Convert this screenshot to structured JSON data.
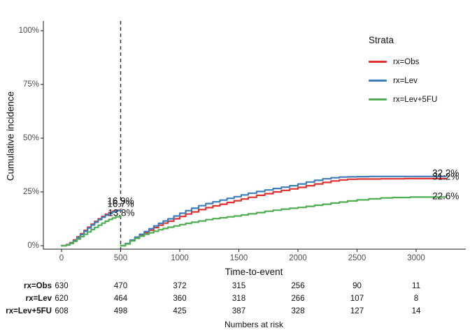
{
  "chart_data": {
    "type": "line",
    "title": "",
    "xlabel": "Time-to-event",
    "ylabel": "Cumulative incidence",
    "x_ticks": [
      0,
      500,
      1000,
      1500,
      2000,
      2500,
      3000
    ],
    "y_ticks": [
      {
        "value": 0,
        "label": "0%"
      },
      {
        "value": 25,
        "label": "25%"
      },
      {
        "value": 50,
        "label": "50%"
      },
      {
        "value": 75,
        "label": "75%"
      },
      {
        "value": 100,
        "label": "100%"
      }
    ],
    "xlim": [
      -155,
      3420
    ],
    "ylim": [
      0,
      104.5
    ],
    "grid": false,
    "landmark_line_x": 500,
    "legend": {
      "title": "Strata",
      "position": "top-right",
      "items": [
        {
          "label": "rx=Obs",
          "color": "#E0312E"
        },
        {
          "label": "rx=Lev",
          "color": "#3D7DBC"
        },
        {
          "label": "rx=Lev+5FU",
          "color": "#4FAE51"
        }
      ]
    },
    "series": [
      {
        "name": "rx=Obs",
        "color": "#E0312E",
        "segments": [
          [
            [
              0,
              0
            ],
            [
              40,
              0.5
            ],
            [
              70,
              1.4
            ],
            [
              100,
              2.7
            ],
            [
              130,
              4.1
            ],
            [
              160,
              5.6
            ],
            [
              190,
              7.1
            ],
            [
              220,
              8.6
            ],
            [
              250,
              10.0
            ],
            [
              280,
              11.3
            ],
            [
              310,
              12.5
            ],
            [
              340,
              13.6
            ],
            [
              370,
              14.6
            ],
            [
              400,
              15.4
            ],
            [
              430,
              16.0
            ],
            [
              460,
              16.5
            ],
            [
              500,
              16.9
            ]
          ],
          [
            [
              500,
              0
            ],
            [
              540,
              0.9
            ],
            [
              580,
              2.4
            ],
            [
              620,
              3.7
            ],
            [
              660,
              4.9
            ],
            [
              700,
              6.0
            ],
            [
              740,
              7.2
            ],
            [
              780,
              8.4
            ],
            [
              820,
              9.5
            ],
            [
              860,
              10.5
            ],
            [
              900,
              11.4
            ],
            [
              950,
              12.5
            ],
            [
              1000,
              13.6
            ],
            [
              1050,
              14.7
            ],
            [
              1100,
              15.7
            ],
            [
              1160,
              16.8
            ],
            [
              1220,
              17.7
            ],
            [
              1280,
              18.5
            ],
            [
              1340,
              19.3
            ],
            [
              1400,
              20.1
            ],
            [
              1460,
              20.9
            ],
            [
              1520,
              21.7
            ],
            [
              1580,
              22.5
            ],
            [
              1650,
              23.4
            ],
            [
              1720,
              24.2
            ],
            [
              1790,
              25.0
            ],
            [
              1860,
              25.7
            ],
            [
              1930,
              26.4
            ],
            [
              2000,
              27.1
            ],
            [
              2070,
              27.9
            ],
            [
              2140,
              28.7
            ],
            [
              2210,
              29.4
            ],
            [
              2280,
              30.1
            ],
            [
              2350,
              30.6
            ],
            [
              2420,
              30.9
            ],
            [
              2500,
              31.0
            ],
            [
              2700,
              31.1
            ],
            [
              2900,
              31.2
            ],
            [
              3250,
              31.2
            ]
          ]
        ]
      },
      {
        "name": "rx=Lev",
        "color": "#3D7DBC",
        "segments": [
          [
            [
              0,
              0
            ],
            [
              40,
              0.4
            ],
            [
              70,
              1.2
            ],
            [
              100,
              2.4
            ],
            [
              130,
              3.7
            ],
            [
              160,
              5.2
            ],
            [
              190,
              6.7
            ],
            [
              220,
              8.2
            ],
            [
              250,
              9.6
            ],
            [
              280,
              10.9
            ],
            [
              310,
              12.1
            ],
            [
              340,
              13.2
            ],
            [
              370,
              14.2
            ],
            [
              400,
              15.0
            ],
            [
              430,
              15.7
            ],
            [
              460,
              16.3
            ],
            [
              500,
              16.7
            ]
          ],
          [
            [
              500,
              0
            ],
            [
              540,
              1.0
            ],
            [
              580,
              2.6
            ],
            [
              620,
              4.0
            ],
            [
              660,
              5.3
            ],
            [
              700,
              6.6
            ],
            [
              740,
              7.9
            ],
            [
              780,
              9.2
            ],
            [
              820,
              10.4
            ],
            [
              860,
              11.5
            ],
            [
              900,
              12.5
            ],
            [
              950,
              13.8
            ],
            [
              1000,
              15.1
            ],
            [
              1050,
              16.3
            ],
            [
              1100,
              17.4
            ],
            [
              1160,
              18.6
            ],
            [
              1220,
              19.6
            ],
            [
              1280,
              20.4
            ],
            [
              1340,
              21.2
            ],
            [
              1400,
              22.0
            ],
            [
              1460,
              22.8
            ],
            [
              1520,
              23.6
            ],
            [
              1580,
              24.4
            ],
            [
              1650,
              25.2
            ],
            [
              1720,
              25.9
            ],
            [
              1790,
              26.6
            ],
            [
              1860,
              27.2
            ],
            [
              1930,
              27.9
            ],
            [
              2000,
              28.7
            ],
            [
              2070,
              29.6
            ],
            [
              2140,
              30.4
            ],
            [
              2210,
              31.1
            ],
            [
              2280,
              31.6
            ],
            [
              2350,
              31.9
            ],
            [
              2420,
              32.0
            ],
            [
              2500,
              32.1
            ],
            [
              2600,
              32.2
            ],
            [
              3250,
              32.2
            ]
          ]
        ]
      },
      {
        "name": "rx=Lev+5FU",
        "color": "#4FAE51",
        "segments": [
          [
            [
              0,
              0
            ],
            [
              40,
              0.3
            ],
            [
              70,
              1.0
            ],
            [
              100,
              2.0
            ],
            [
              130,
              3.1
            ],
            [
              160,
              4.2
            ],
            [
              190,
              5.3
            ],
            [
              220,
              6.4
            ],
            [
              250,
              7.5
            ],
            [
              280,
              8.5
            ],
            [
              310,
              9.5
            ],
            [
              340,
              10.5
            ],
            [
              370,
              11.4
            ],
            [
              400,
              12.2
            ],
            [
              430,
              12.9
            ],
            [
              460,
              13.4
            ],
            [
              500,
              13.8
            ]
          ],
          [
            [
              500,
              0
            ],
            [
              540,
              0.8
            ],
            [
              580,
              2.2
            ],
            [
              620,
              3.4
            ],
            [
              660,
              4.4
            ],
            [
              700,
              5.3
            ],
            [
              740,
              6.0
            ],
            [
              780,
              6.7
            ],
            [
              820,
              7.4
            ],
            [
              860,
              8.0
            ],
            [
              900,
              8.6
            ],
            [
              950,
              9.2
            ],
            [
              1000,
              9.8
            ],
            [
              1050,
              10.4
            ],
            [
              1100,
              10.9
            ],
            [
              1160,
              11.5
            ],
            [
              1220,
              12.1
            ],
            [
              1280,
              12.6
            ],
            [
              1340,
              13.0
            ],
            [
              1400,
              13.4
            ],
            [
              1460,
              13.8
            ],
            [
              1520,
              14.3
            ],
            [
              1580,
              14.8
            ],
            [
              1650,
              15.4
            ],
            [
              1720,
              16.0
            ],
            [
              1790,
              16.5
            ],
            [
              1860,
              17.0
            ],
            [
              1930,
              17.4
            ],
            [
              2000,
              17.8
            ],
            [
              2070,
              18.3
            ],
            [
              2140,
              18.8
            ],
            [
              2210,
              19.3
            ],
            [
              2280,
              19.8
            ],
            [
              2350,
              20.3
            ],
            [
              2420,
              20.8
            ],
            [
              2500,
              21.3
            ],
            [
              2600,
              21.8
            ],
            [
              2700,
              22.2
            ],
            [
              2800,
              22.4
            ],
            [
              2950,
              22.6
            ],
            [
              3250,
              22.6
            ]
          ]
        ]
      }
    ],
    "annotations": [
      {
        "text": "16.9%",
        "day": 500,
        "pct": 20.8
      },
      {
        "text": "16.7%",
        "day": 500,
        "pct": 19.5
      },
      {
        "text": "13.8%",
        "day": 505,
        "pct": 15.3
      },
      {
        "text": "32.2%",
        "day": 3250,
        "pct": 33.8
      },
      {
        "text": "31.2%",
        "day": 3250,
        "pct": 32.3
      },
      {
        "text": "22.6%",
        "day": 3250,
        "pct": 22.9
      }
    ],
    "risk_table": {
      "caption": "Numbers at risk",
      "time_points": [
        0,
        500,
        1000,
        1500,
        2000,
        2500,
        3000
      ],
      "rows": [
        {
          "label": "rx=Obs",
          "values": [
            630,
            470,
            372,
            315,
            256,
            90,
            11
          ]
        },
        {
          "label": "rx=Lev",
          "values": [
            620,
            464,
            360,
            318,
            266,
            107,
            8
          ]
        },
        {
          "label": "rx=Lev+5FU",
          "values": [
            608,
            498,
            425,
            387,
            328,
            127,
            14
          ]
        }
      ]
    }
  }
}
